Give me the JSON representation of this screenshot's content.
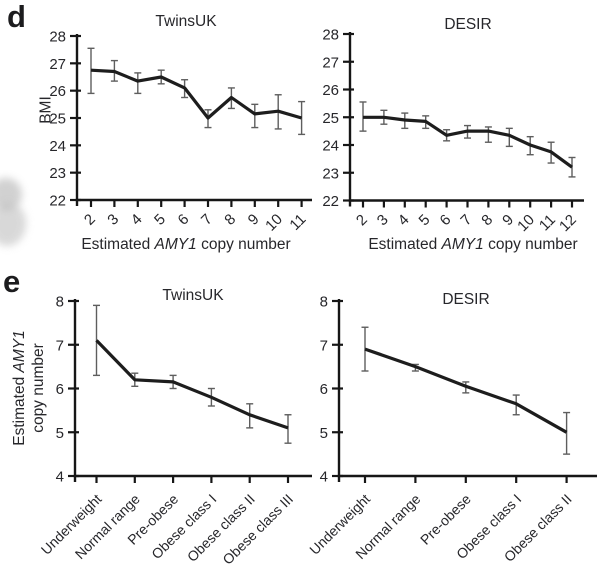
{
  "colors": {
    "line": "#1d1d1d",
    "error_bar": "#5e5e5e",
    "axis": "#161616",
    "text": "#27272b"
  },
  "panels": {
    "d": "d",
    "e": "e"
  },
  "labels": {
    "xlabel_pre": "Estimated ",
    "xlabel_gene": "AMY1",
    "xlabel_post": " copy number",
    "d_ylabel": "BMI",
    "e_ylabel_pre": "Estimated ",
    "e_ylabel_gene": "AMY1",
    "e_ylabel_line2": "copy number"
  },
  "chart_data": [
    {
      "id": "d-twinsuk",
      "panel": "d",
      "type": "line",
      "title": "TwinsUK",
      "xlabel": "Estimated AMY1 copy number",
      "ylabel": "BMI",
      "x": [
        2,
        3,
        4,
        5,
        6,
        7,
        8,
        9,
        10,
        11
      ],
      "values": [
        26.75,
        26.7,
        26.35,
        26.5,
        26.1,
        25.0,
        25.75,
        25.15,
        25.25,
        25.0
      ],
      "err_lo": [
        25.9,
        26.35,
        25.9,
        26.25,
        25.75,
        24.65,
        25.35,
        24.65,
        24.6,
        24.4
      ],
      "err_hi": [
        27.55,
        27.1,
        26.65,
        26.75,
        26.4,
        25.3,
        26.1,
        25.5,
        25.85,
        25.6
      ],
      "ylim": [
        22,
        28
      ],
      "yticks": [
        22,
        23,
        24,
        25,
        26,
        27,
        28
      ],
      "grid": false,
      "legend": "none"
    },
    {
      "id": "d-desir",
      "panel": "d",
      "type": "line",
      "title": "DESIR",
      "xlabel": "Estimated AMY1 copy number",
      "ylabel": "",
      "x": [
        2,
        3,
        4,
        5,
        6,
        7,
        8,
        9,
        10,
        11,
        12
      ],
      "values": [
        25.0,
        25.0,
        24.9,
        24.85,
        24.35,
        24.5,
        24.5,
        24.35,
        24.0,
        23.75,
        23.2
      ],
      "err_lo": [
        24.5,
        24.75,
        24.6,
        24.6,
        24.15,
        24.25,
        24.1,
        23.95,
        23.65,
        23.35,
        22.85
      ],
      "err_hi": [
        25.55,
        25.25,
        25.15,
        25.05,
        24.55,
        24.7,
        24.65,
        24.6,
        24.3,
        24.1,
        23.55
      ],
      "ylim": [
        22,
        28
      ],
      "yticks": [
        22,
        23,
        24,
        25,
        26,
        27,
        28
      ],
      "grid": false,
      "legend": "none"
    },
    {
      "id": "e-twinsuk",
      "panel": "e",
      "type": "line",
      "title": "TwinsUK",
      "xlabel": "",
      "ylabel": "Estimated AMY1 copy number",
      "categories": [
        "Underweight",
        "Normal range",
        "Pre-obese",
        "Obese class I",
        "Obese class II",
        "Obese class III"
      ],
      "values": [
        7.1,
        6.2,
        6.15,
        5.8,
        5.4,
        5.1
      ],
      "err_lo": [
        6.3,
        6.05,
        6.0,
        5.6,
        5.1,
        4.75
      ],
      "err_hi": [
        7.9,
        6.35,
        6.3,
        6.0,
        5.65,
        5.4
      ],
      "ylim": [
        4,
        8
      ],
      "yticks": [
        4,
        5,
        6,
        7,
        8
      ],
      "grid": false,
      "legend": "none"
    },
    {
      "id": "e-desir",
      "panel": "e",
      "type": "line",
      "title": "DESIR",
      "xlabel": "",
      "ylabel": "",
      "categories": [
        "Underweight",
        "Normal range",
        "Pre-obese",
        "Obese class I",
        "Obese class II"
      ],
      "values": [
        6.9,
        6.5,
        6.05,
        5.65,
        5.0
      ],
      "err_lo": [
        6.4,
        6.4,
        5.9,
        5.4,
        4.5
      ],
      "err_hi": [
        7.4,
        6.55,
        6.15,
        5.85,
        5.45
      ],
      "ylim": [
        4,
        8
      ],
      "yticks": [
        4,
        5,
        6,
        7,
        8
      ],
      "grid": false,
      "legend": "none"
    }
  ]
}
